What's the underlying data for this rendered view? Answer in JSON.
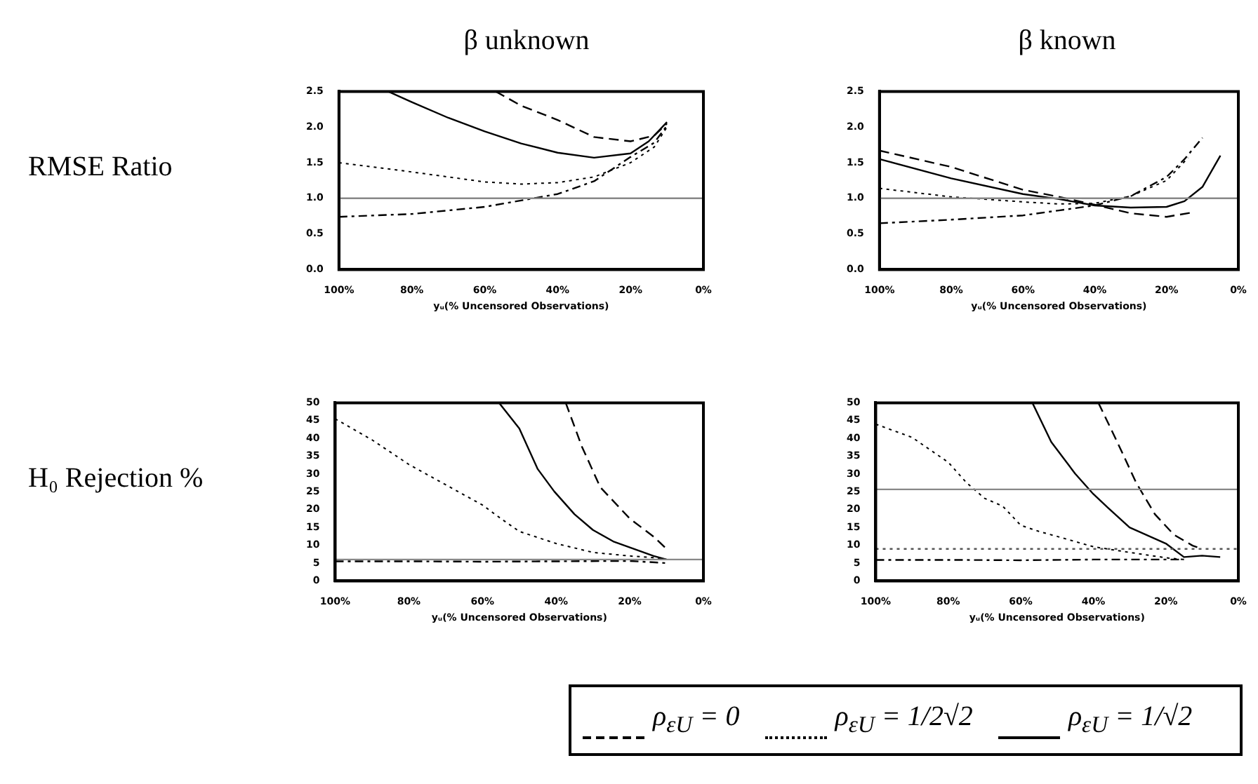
{
  "chart_data": [
    {
      "type": "line",
      "title": "β unknown",
      "ylabel": "RMSE Ratio",
      "xlabel": "yᵤ(% Uncensored Observations)",
      "legend": "bottom",
      "xlim": [
        100,
        0
      ],
      "xticks": [
        {
          "value": 100,
          "label": "100%"
        },
        {
          "value": 80,
          "label": "80%"
        },
        {
          "value": 60,
          "label": "60%"
        },
        {
          "value": 40,
          "label": "40%"
        },
        {
          "value": 20,
          "label": "20%"
        },
        {
          "value": 0,
          "label": "0%"
        }
      ],
      "ylim": [
        0,
        2.5
      ],
      "yticks": [
        {
          "value": 0,
          "label": "0.0"
        },
        0.5,
        {
          "value": 1,
          "label": "1.0"
        },
        1.5,
        {
          "value": 2,
          "label": "2.0"
        },
        2.5
      ],
      "ref_lines": [
        {
          "axis": "y",
          "value": 1,
          "color": "#888888",
          "line_style": "solid"
        }
      ],
      "series": [
        {
          "name": "ρ$_{εU}$ = 0",
          "color": "#000000",
          "line_style": "dashdot",
          "x": [
            100,
            80,
            60,
            50,
            40,
            30,
            20,
            13.5,
            10
          ],
          "values": [
            0.74,
            0.78,
            0.88,
            0.97,
            1.06,
            1.24,
            1.58,
            1.78,
            2.02
          ]
        },
        {
          "name": "ρ$_{εU}$ = 1/2√2",
          "color": "#000000",
          "line_style": "dotted",
          "x": [
            100,
            80,
            60,
            50,
            40,
            30,
            20,
            13.5,
            10
          ],
          "values": [
            1.5,
            1.37,
            1.23,
            1.2,
            1.22,
            1.3,
            1.5,
            1.72,
            2.0
          ]
        },
        {
          "name": "ρ$_{εU}$ = 1/√2",
          "color": "#000000",
          "line_style": "solid",
          "x": [
            86.5,
            80,
            70,
            60,
            50,
            40,
            30,
            20,
            15,
            10
          ],
          "values": [
            2.5,
            2.35,
            2.13,
            1.94,
            1.77,
            1.64,
            1.57,
            1.63,
            1.8,
            2.07
          ]
        },
        {
          "color": "#000000",
          "line_style": "dashed",
          "x": [
            57,
            50,
            40,
            30,
            20,
            13.5,
            10
          ],
          "values": [
            2.5,
            2.3,
            2.1,
            1.86,
            1.8,
            1.88,
            2.05
          ]
        }
      ]
    },
    {
      "type": "line",
      "title": "β known",
      "xlabel": "yᵤ(% Uncensored Observations)",
      "xlim": [
        100,
        0
      ],
      "xticks": [
        {
          "value": 100,
          "label": "100%"
        },
        {
          "value": 80,
          "label": "80%"
        },
        {
          "value": 60,
          "label": "60%"
        },
        {
          "value": 40,
          "label": "40%"
        },
        {
          "value": 20,
          "label": "20%"
        },
        {
          "value": 0,
          "label": "0%"
        }
      ],
      "ylim": [
        0,
        2.5
      ],
      "yticks": [
        {
          "value": 0,
          "label": "0.0"
        },
        0.5,
        {
          "value": 1,
          "label": "1.0"
        },
        1.5,
        {
          "value": 2,
          "label": "2.0"
        },
        2.5
      ],
      "ref_lines": [
        {
          "axis": "y",
          "value": 1,
          "color": "#888888",
          "line_style": "solid"
        }
      ],
      "series": [
        {
          "color": "#000000",
          "line_style": "dashdot",
          "x": [
            100,
            80,
            60,
            50,
            40,
            30,
            20,
            15,
            10
          ],
          "values": [
            0.65,
            0.7,
            0.76,
            0.83,
            0.9,
            1.03,
            1.3,
            1.55,
            1.85
          ]
        },
        {
          "color": "#000000",
          "line_style": "dotted",
          "x": [
            100,
            80,
            60,
            50,
            40,
            30,
            20,
            14
          ],
          "values": [
            1.14,
            1.02,
            0.95,
            0.92,
            0.93,
            1.03,
            1.25,
            1.57
          ]
        },
        {
          "color": "#000000",
          "line_style": "solid",
          "x": [
            100,
            80,
            60,
            50,
            40,
            30,
            20,
            15,
            10,
            5
          ],
          "values": [
            1.55,
            1.28,
            1.06,
            0.99,
            0.9,
            0.87,
            0.88,
            0.96,
            1.16,
            1.6
          ]
        },
        {
          "color": "#000000",
          "line_style": "dashed",
          "x": [
            100,
            80,
            60,
            50,
            40,
            30,
            20,
            13
          ],
          "values": [
            1.67,
            1.44,
            1.12,
            1.02,
            0.91,
            0.79,
            0.74,
            0.8
          ]
        }
      ]
    },
    {
      "type": "line",
      "ylabel": "H₀ Rejection %",
      "xlabel": "yᵤ(% Uncensored Observations)",
      "xlim": [
        100,
        0
      ],
      "xticks": [
        {
          "value": 100,
          "label": "100%"
        },
        {
          "value": 80,
          "label": "80%"
        },
        {
          "value": 60,
          "label": "60%"
        },
        {
          "value": 40,
          "label": "40%"
        },
        {
          "value": 20,
          "label": "20%"
        },
        {
          "value": 0,
          "label": "0%"
        }
      ],
      "ylim": [
        0,
        50
      ],
      "yticks": [
        0,
        5,
        10,
        15,
        20,
        25,
        30,
        35,
        40,
        45,
        50
      ],
      "ref_lines": [
        {
          "axis": "y",
          "value": 6,
          "color": "#888888",
          "line_style": "solid"
        }
      ],
      "series": [
        {
          "color": "#000000",
          "line_style": "dashdot",
          "x": [
            100,
            80,
            60,
            40,
            20,
            13,
            10
          ],
          "values": [
            5.5,
            5.5,
            5.4,
            5.5,
            5.6,
            5.2,
            5
          ]
        },
        {
          "color": "#000000",
          "line_style": "dotted",
          "x": [
            100,
            90,
            80,
            70,
            60,
            55,
            50,
            40,
            30,
            20,
            13,
            10
          ],
          "values": [
            45.5,
            39.6,
            32.7,
            27,
            21.3,
            17.5,
            13.9,
            10.5,
            8,
            7,
            6.5,
            6
          ]
        },
        {
          "color": "#000000",
          "line_style": "solid",
          "x": [
            55.5,
            50,
            45,
            40.5,
            35,
            30,
            24.5,
            13.5,
            10
          ],
          "values": [
            50,
            42.8,
            31.4,
            25.1,
            18.7,
            14.3,
            11.1,
            7,
            6
          ]
        },
        {
          "color": "#000000",
          "line_style": "dashed",
          "x": [
            37.4,
            33,
            28,
            20,
            13.5,
            10
          ],
          "values": [
            50,
            37.7,
            26.3,
            17.5,
            12.4,
            9
          ]
        }
      ]
    },
    {
      "type": "line",
      "xlabel": "yᵤ(% Uncensored Observations)",
      "xlim": [
        100,
        0
      ],
      "xticks": [
        {
          "value": 100,
          "label": "100%"
        },
        {
          "value": 80,
          "label": "80%"
        },
        {
          "value": 60,
          "label": "60%"
        },
        {
          "value": 40,
          "label": "40%"
        },
        {
          "value": 20,
          "label": "20%"
        },
        {
          "value": 0,
          "label": "0%"
        }
      ],
      "ylim": [
        0,
        50
      ],
      "yticks": [
        0,
        5,
        10,
        15,
        20,
        25,
        30,
        35,
        40,
        45,
        50
      ],
      "ref_lines": [
        {
          "axis": "y",
          "value": 25.7,
          "color": "#888888",
          "line_style": "solid"
        },
        {
          "axis": "y",
          "value": 9,
          "color": "#555555",
          "line_style": "dotted"
        }
      ],
      "series": [
        {
          "color": "#000000",
          "line_style": "dashdot",
          "x": [
            100,
            80,
            60,
            40,
            20,
            15
          ],
          "values": [
            5.9,
            5.9,
            5.8,
            6,
            6,
            6
          ]
        },
        {
          "color": "#000000",
          "line_style": "dotted",
          "x": [
            100,
            90,
            80,
            75,
            70,
            65,
            60,
            55,
            50,
            40,
            30,
            20,
            15
          ],
          "values": [
            44,
            40.3,
            33.3,
            27.6,
            23.2,
            21,
            15.6,
            13.9,
            12.5,
            9.6,
            8,
            6.5,
            6
          ]
        },
        {
          "color": "#000000",
          "line_style": "solid",
          "x": [
            56.8,
            51.6,
            45,
            40,
            36,
            30,
            20,
            15,
            10,
            5
          ],
          "values": [
            50,
            39,
            30.1,
            24.4,
            20.6,
            15,
            10.5,
            6.7,
            7.1,
            6.7
          ]
        },
        {
          "color": "#000000",
          "line_style": "dashed",
          "x": [
            38.6,
            33.4,
            28.2,
            23,
            17.8,
            12.6,
            10.7
          ],
          "values": [
            50,
            39,
            27.6,
            18.7,
            13,
            9.9,
            9.2
          ]
        }
      ]
    }
  ]
}
